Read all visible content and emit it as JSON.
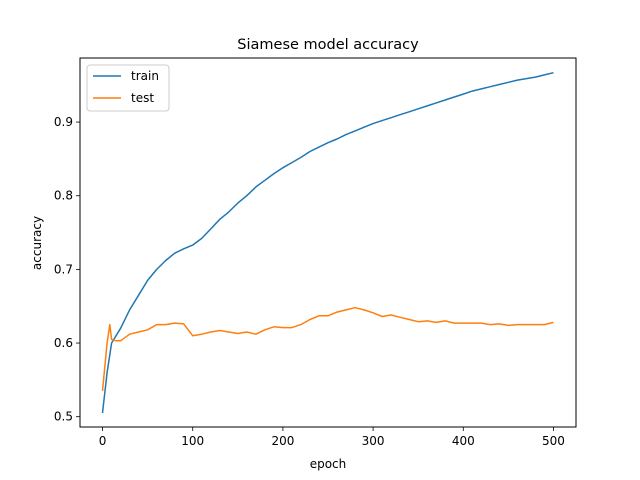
{
  "chart_data": {
    "type": "line",
    "title": "Siamese model accuracy",
    "xlabel": "epoch",
    "ylabel": "accuracy",
    "xlim": [
      -25,
      525
    ],
    "ylim": [
      0.486,
      0.987
    ],
    "xticks": [
      0,
      100,
      200,
      300,
      400,
      500
    ],
    "yticks": [
      0.5,
      0.6,
      0.7,
      0.8,
      0.9
    ],
    "xtick_labels": [
      "0",
      "100",
      "200",
      "300",
      "400",
      "500"
    ],
    "ytick_labels": [
      "0.5",
      "0.6",
      "0.7",
      "0.8",
      "0.9"
    ],
    "legend_position": "top-left",
    "grid": false,
    "series": [
      {
        "name": "train",
        "color": "#1f77b4",
        "x": [
          0,
          5,
          10,
          20,
          30,
          40,
          50,
          60,
          70,
          80,
          90,
          100,
          110,
          120,
          130,
          140,
          150,
          160,
          170,
          180,
          190,
          200,
          210,
          220,
          230,
          240,
          250,
          260,
          270,
          280,
          290,
          300,
          310,
          320,
          330,
          340,
          350,
          360,
          370,
          380,
          390,
          400,
          410,
          420,
          430,
          440,
          450,
          460,
          470,
          480,
          490,
          500
        ],
        "values": [
          0.505,
          0.56,
          0.6,
          0.62,
          0.645,
          0.665,
          0.685,
          0.7,
          0.712,
          0.722,
          0.728,
          0.733,
          0.742,
          0.755,
          0.768,
          0.778,
          0.79,
          0.8,
          0.812,
          0.821,
          0.83,
          0.838,
          0.845,
          0.852,
          0.86,
          0.866,
          0.872,
          0.877,
          0.883,
          0.888,
          0.893,
          0.898,
          0.902,
          0.906,
          0.91,
          0.914,
          0.918,
          0.922,
          0.926,
          0.93,
          0.934,
          0.938,
          0.942,
          0.945,
          0.948,
          0.951,
          0.954,
          0.957,
          0.959,
          0.961,
          0.964,
          0.967
        ]
      },
      {
        "name": "test",
        "color": "#ff7f0e",
        "x": [
          0,
          5,
          8,
          10,
          15,
          20,
          30,
          40,
          50,
          60,
          70,
          80,
          90,
          100,
          110,
          120,
          130,
          140,
          150,
          160,
          170,
          180,
          190,
          200,
          210,
          220,
          230,
          240,
          250,
          260,
          270,
          280,
          290,
          300,
          310,
          320,
          330,
          340,
          350,
          360,
          370,
          380,
          390,
          400,
          410,
          420,
          430,
          440,
          450,
          460,
          470,
          480,
          490,
          500
        ],
        "values": [
          0.535,
          0.6,
          0.625,
          0.605,
          0.603,
          0.603,
          0.612,
          0.615,
          0.618,
          0.625,
          0.625,
          0.627,
          0.626,
          0.61,
          0.612,
          0.615,
          0.617,
          0.615,
          0.613,
          0.615,
          0.612,
          0.618,
          0.622,
          0.621,
          0.621,
          0.625,
          0.632,
          0.637,
          0.637,
          0.642,
          0.645,
          0.648,
          0.645,
          0.641,
          0.636,
          0.638,
          0.635,
          0.632,
          0.629,
          0.63,
          0.628,
          0.63,
          0.627,
          0.627,
          0.627,
          0.627,
          0.625,
          0.626,
          0.624,
          0.625,
          0.625,
          0.625,
          0.625,
          0.628
        ]
      }
    ]
  }
}
